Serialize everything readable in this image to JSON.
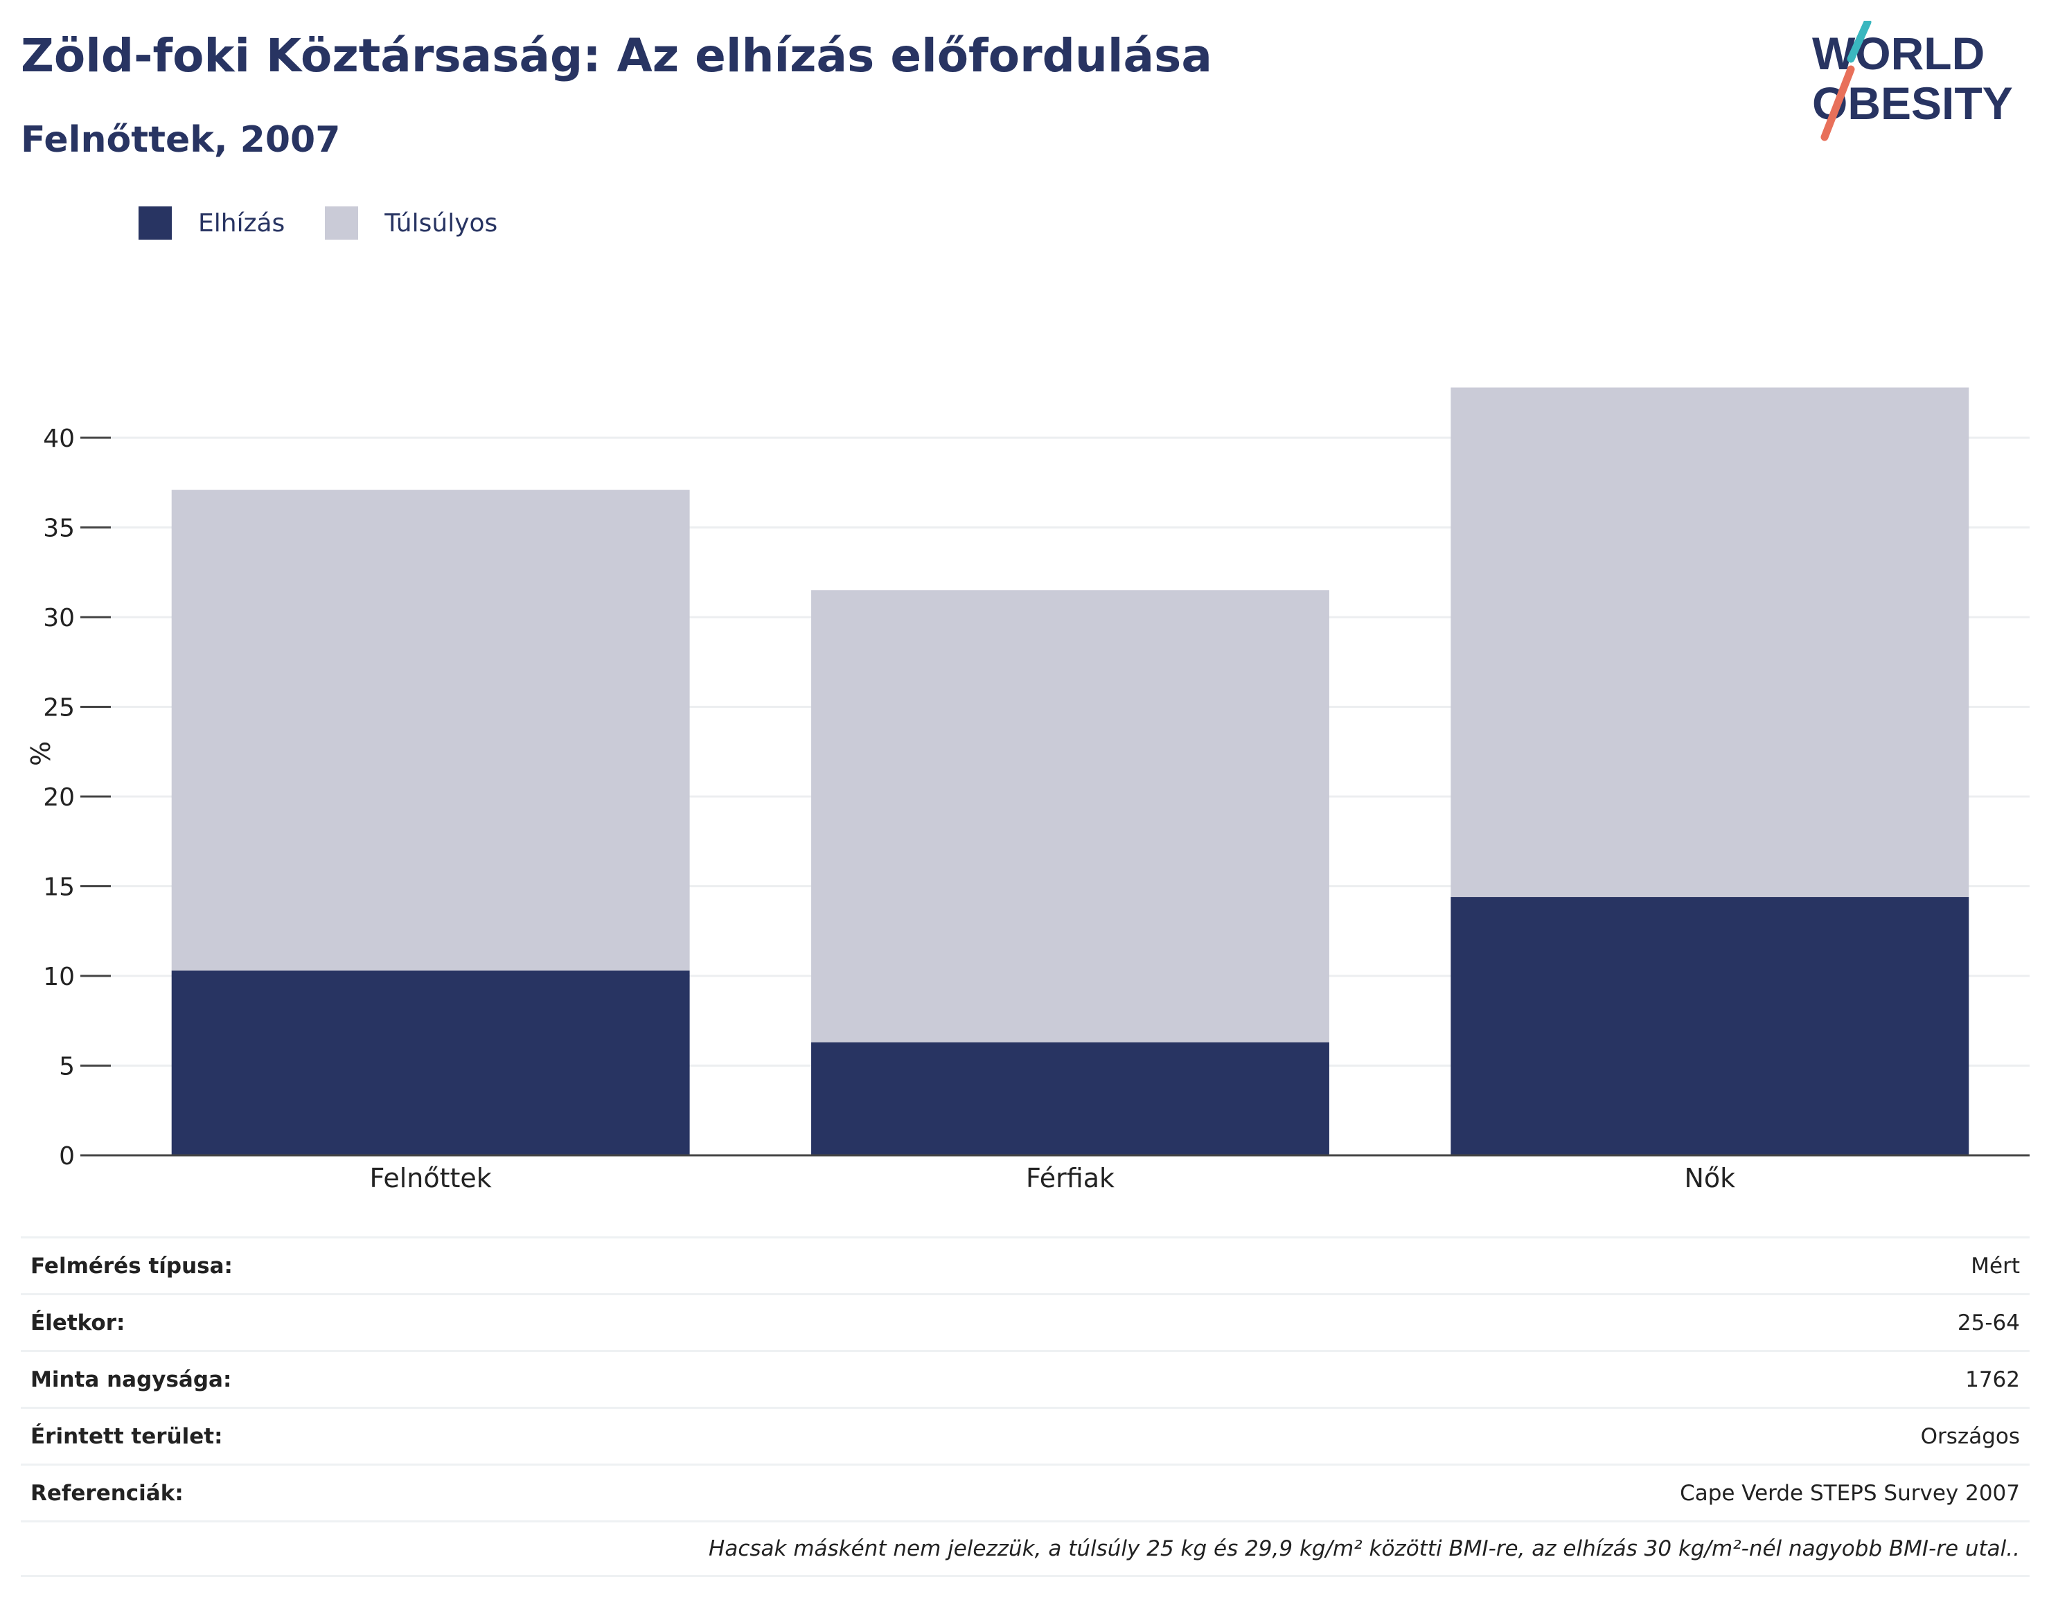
{
  "header": {
    "title": "Zöld-foki Köztársaság: Az elhízás előfordulása",
    "subtitle": "Felnőttek, 2007"
  },
  "logo": {
    "line1": "WORLD",
    "line2": "OBESITY"
  },
  "colors": {
    "obesity": "#283462",
    "overweight": "#cacbd7",
    "text": "#283462",
    "grid": "#eceef0",
    "axis": "#444444"
  },
  "legend": [
    {
      "label": "Elhízás",
      "color": "#283462"
    },
    {
      "label": "Túlsúlyos",
      "color": "#cacbd7"
    }
  ],
  "chart_data": {
    "type": "bar",
    "stacked": true,
    "categories": [
      "Felnőttek",
      "Férfiak",
      "Nők"
    ],
    "series": [
      {
        "name": "Elhízás",
        "values": [
          10.3,
          6.3,
          14.4
        ]
      },
      {
        "name": "Túlsúlyos",
        "values": [
          26.8,
          25.2,
          28.4
        ]
      }
    ],
    "ylabel": "%",
    "ylim": [
      0,
      45
    ],
    "yticks": [
      0,
      5,
      10,
      15,
      20,
      25,
      30,
      35,
      40
    ],
    "grid": true
  },
  "info": {
    "rows": [
      {
        "label": "Felmérés típusa:",
        "value": "Mért"
      },
      {
        "label": "Életkor:",
        "value": "25-64"
      },
      {
        "label": "Minta nagysága:",
        "value": "1762"
      },
      {
        "label": "Érintett terület:",
        "value": "Országos"
      },
      {
        "label": "Referenciák:",
        "value": "Cape Verde STEPS Survey 2007"
      }
    ],
    "note": "Hacsak másként nem jelezzük, a túlsúly 25 kg és 29,9 kg/m² közötti BMI-re, az elhízás 30 kg/m²-nél nagyobb BMI-re utal.."
  }
}
